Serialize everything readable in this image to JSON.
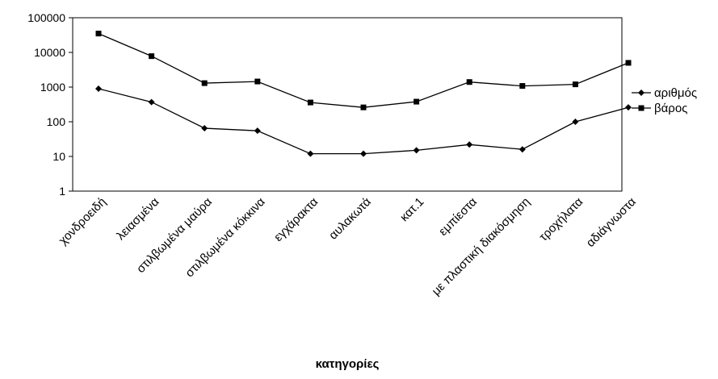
{
  "chart_data": {
    "type": "line",
    "title": "",
    "xlabel": "κατηγορίες",
    "ylabel": "",
    "yscale": "log",
    "ylim": [
      1,
      100000
    ],
    "yticks": [
      "100000",
      "10000",
      "1000",
      "100",
      "10",
      "1"
    ],
    "grid": false,
    "legend_position": "right",
    "categories": [
      "χονδροειδή",
      "λειασμένα",
      "στιλβωμένα μαύρα",
      "στιλβωμένα κόκκινα",
      "εγχάρακτα",
      "αυλακωτά",
      "κατ.1",
      "εμπίεστα",
      "με πλαστική διακόσμηση",
      "τροχήλατα",
      "αδιάγνωστα"
    ],
    "series": [
      {
        "name": "αριθμός",
        "marker": "diamond",
        "color": "#000000",
        "values": [
          900,
          370,
          65,
          55,
          12,
          12,
          15,
          22,
          16,
          100,
          260
        ]
      },
      {
        "name": "βάρος",
        "marker": "square",
        "color": "#000000",
        "values": [
          35000,
          7800,
          1300,
          1450,
          360,
          260,
          380,
          1400,
          1080,
          1200,
          5000
        ]
      }
    ]
  }
}
